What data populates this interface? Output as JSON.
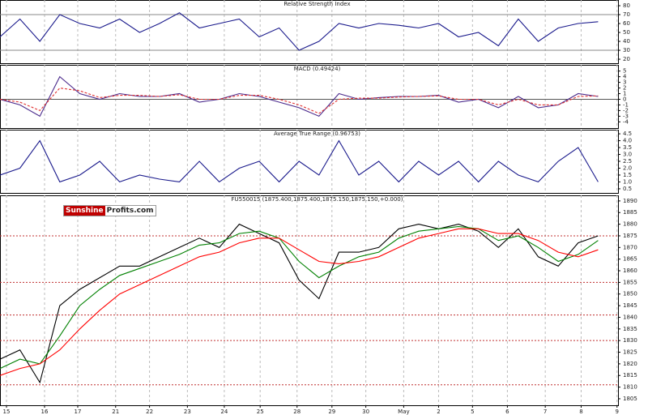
{
  "logo": {
    "left": "Sunshine",
    "right": "Profits.com"
  },
  "chart_data": [
    {
      "type": "line",
      "title": "Relative Strength Index",
      "x": [
        0,
        2,
        4,
        6,
        8,
        10,
        12,
        14,
        16,
        18,
        20,
        22,
        24,
        26,
        28,
        30,
        32,
        34,
        36,
        38,
        40,
        42,
        44,
        46,
        48,
        50,
        52,
        54,
        56,
        58,
        60
      ],
      "xlim": [
        0,
        62
      ],
      "ylim": [
        15.5,
        86.4
      ],
      "yticks": [
        80,
        70,
        60,
        50,
        40,
        30,
        20
      ],
      "hlines": [
        70,
        30
      ],
      "hline_color": "#888888",
      "grid": true,
      "series": [
        {
          "name": "RSI",
          "color": "#1a1a8c",
          "values": [
            45,
            65,
            40,
            70,
            60,
            55,
            65,
            50,
            60,
            72,
            55,
            60,
            65,
            45,
            55,
            30,
            40,
            60,
            55,
            60,
            58,
            55,
            60,
            45,
            50,
            35,
            65,
            40,
            55,
            60,
            62
          ]
        }
      ]
    },
    {
      "type": "line",
      "title": "MACD (0.49424)",
      "x": [
        0,
        2,
        4,
        6,
        8,
        10,
        12,
        14,
        16,
        18,
        20,
        22,
        24,
        26,
        28,
        30,
        32,
        34,
        36,
        38,
        40,
        42,
        44,
        46,
        48,
        50,
        52,
        54,
        56,
        58,
        60
      ],
      "xlim": [
        0,
        62
      ],
      "ylim": [
        -5.1,
        6.1
      ],
      "yticks": [
        5,
        4,
        3,
        2,
        1,
        0,
        -1,
        -2,
        -3,
        -4
      ],
      "hlines": [
        0
      ],
      "hline_color": "#555555",
      "grid": true,
      "series": [
        {
          "name": "MACD",
          "color": "#4b2a8c",
          "values": [
            0,
            -1,
            -3,
            4,
            1,
            0,
            1,
            0.5,
            0.5,
            1,
            -0.5,
            0,
            1,
            0.5,
            -0.5,
            -1.5,
            -3,
            1,
            0,
            0.3,
            0.5,
            0.5,
            0.7,
            -0.5,
            0,
            -1.5,
            0.5,
            -1.5,
            -1,
            1,
            0.5
          ]
        },
        {
          "name": "Signal",
          "color": "#e03030",
          "dashed": true,
          "values": [
            0,
            -0.5,
            -2,
            2,
            1.5,
            0.3,
            0.7,
            0.7,
            0.5,
            0.8,
            0,
            0,
            0.7,
            0.7,
            0,
            -1,
            -2.5,
            0,
            0.2,
            0.2,
            0.4,
            0.5,
            0.6,
            0,
            0,
            -1,
            0,
            -1,
            -1,
            0.5,
            0.6
          ]
        }
      ]
    },
    {
      "type": "line",
      "title": "Average True Range (0.96753)",
      "x": [
        0,
        2,
        4,
        6,
        8,
        10,
        12,
        14,
        16,
        18,
        20,
        22,
        24,
        26,
        28,
        30,
        32,
        34,
        36,
        38,
        40,
        42,
        44,
        46,
        48,
        50,
        52,
        54,
        56,
        58,
        60
      ],
      "xlim": [
        0,
        62
      ],
      "ylim": [
        0.2,
        4.8
      ],
      "yticks": [
        4.5,
        {
          "value": 4,
          "label": "4.0"
        },
        3.5,
        {
          "value": 3,
          "label": "3.0"
        },
        2.5,
        {
          "value": 2,
          "label": "2.0"
        },
        1.5,
        {
          "value": 1,
          "label": "1.0"
        },
        0.5
      ],
      "hlines": [],
      "hline_color": "#888888",
      "grid": true,
      "series": [
        {
          "name": "ATR",
          "color": "#1a1a8c",
          "values": [
            1.5,
            2.0,
            4.0,
            1.0,
            1.5,
            2.5,
            1.0,
            1.5,
            1.2,
            1.0,
            2.5,
            1.0,
            2.0,
            2.5,
            1.0,
            2.5,
            1.5,
            4.0,
            1.5,
            2.5,
            1.0,
            2.5,
            1.5,
            2.5,
            1.0,
            2.5,
            1.5,
            1.0,
            2.5,
            3.5,
            1.0
          ]
        }
      ]
    },
    {
      "type": "line",
      "title": "FU550015 (1875.400,1875.400,1875.150,1875.150,+0.000)",
      "x": [
        0,
        2,
        4,
        6,
        8,
        10,
        12,
        14,
        16,
        18,
        20,
        22,
        24,
        26,
        28,
        30,
        32,
        34,
        36,
        38,
        40,
        42,
        44,
        46,
        48,
        50,
        52,
        54,
        56,
        58,
        60
      ],
      "xlim": [
        0,
        62
      ],
      "ylim": [
        1802.2,
        1892.4
      ],
      "yticks": [
        1890,
        1885,
        1880,
        1875,
        1870,
        1865,
        1860,
        1855,
        1850,
        1845,
        1840,
        1835,
        1830,
        1825,
        1820,
        1815,
        1810,
        1805
      ],
      "hlines": [
        1875,
        1855,
        1841,
        1830,
        1811
      ],
      "hline_color": "#c03030",
      "hline_dashed": true,
      "grid": true,
      "xticks": [
        {
          "value": 0.65,
          "label": "15"
        },
        {
          "value": 4.47,
          "label": "16"
        },
        {
          "value": 7.8,
          "label": "17"
        },
        {
          "value": 11.6,
          "label": "21"
        },
        {
          "value": 15.0,
          "label": "22"
        },
        {
          "value": 18.8,
          "label": "23"
        },
        {
          "value": 22.5,
          "label": "24"
        },
        {
          "value": 26.1,
          "label": "25"
        },
        {
          "value": 29.8,
          "label": "28"
        },
        {
          "value": 33.3,
          "label": "29"
        },
        {
          "value": 36.7,
          "label": "30"
        },
        {
          "value": 40.5,
          "label": "May"
        },
        {
          "value": 44.0,
          "label": "2"
        },
        {
          "value": 47.4,
          "label": "5"
        },
        {
          "value": 50.9,
          "label": "6"
        },
        {
          "value": 54.7,
          "label": "7"
        },
        {
          "value": 58.3,
          "label": "8"
        },
        {
          "value": 61.9,
          "label": "9"
        }
      ],
      "series": [
        {
          "name": "Price",
          "color": "#000000",
          "values": [
            1822,
            1826,
            1812,
            1845,
            1852,
            1857,
            1862,
            1862,
            1866,
            1870,
            1874,
            1870,
            1880,
            1876,
            1872,
            1856,
            1848,
            1868,
            1868,
            1870,
            1878,
            1880,
            1878,
            1880,
            1877,
            1870,
            1878,
            1866,
            1862,
            1872,
            1875
          ]
        },
        {
          "name": "Short MA",
          "color": "#008000",
          "values": [
            1818,
            1822,
            1820,
            1832,
            1845,
            1852,
            1858,
            1861,
            1864,
            1867,
            1871,
            1872,
            1876,
            1877,
            1874,
            1864,
            1857,
            1862,
            1866,
            1868,
            1874,
            1877,
            1878,
            1879,
            1878,
            1873,
            1875,
            1870,
            1864,
            1867,
            1873
          ]
        },
        {
          "name": "Long MA",
          "color": "#ff0000",
          "values": [
            1815,
            1818,
            1820,
            1826,
            1835,
            1843,
            1850,
            1854,
            1858,
            1862,
            1866,
            1868,
            1872,
            1874,
            1874,
            1869,
            1864,
            1863,
            1864,
            1866,
            1870,
            1874,
            1876,
            1878,
            1878,
            1876,
            1876,
            1873,
            1868,
            1866,
            1869
          ]
        }
      ]
    }
  ]
}
